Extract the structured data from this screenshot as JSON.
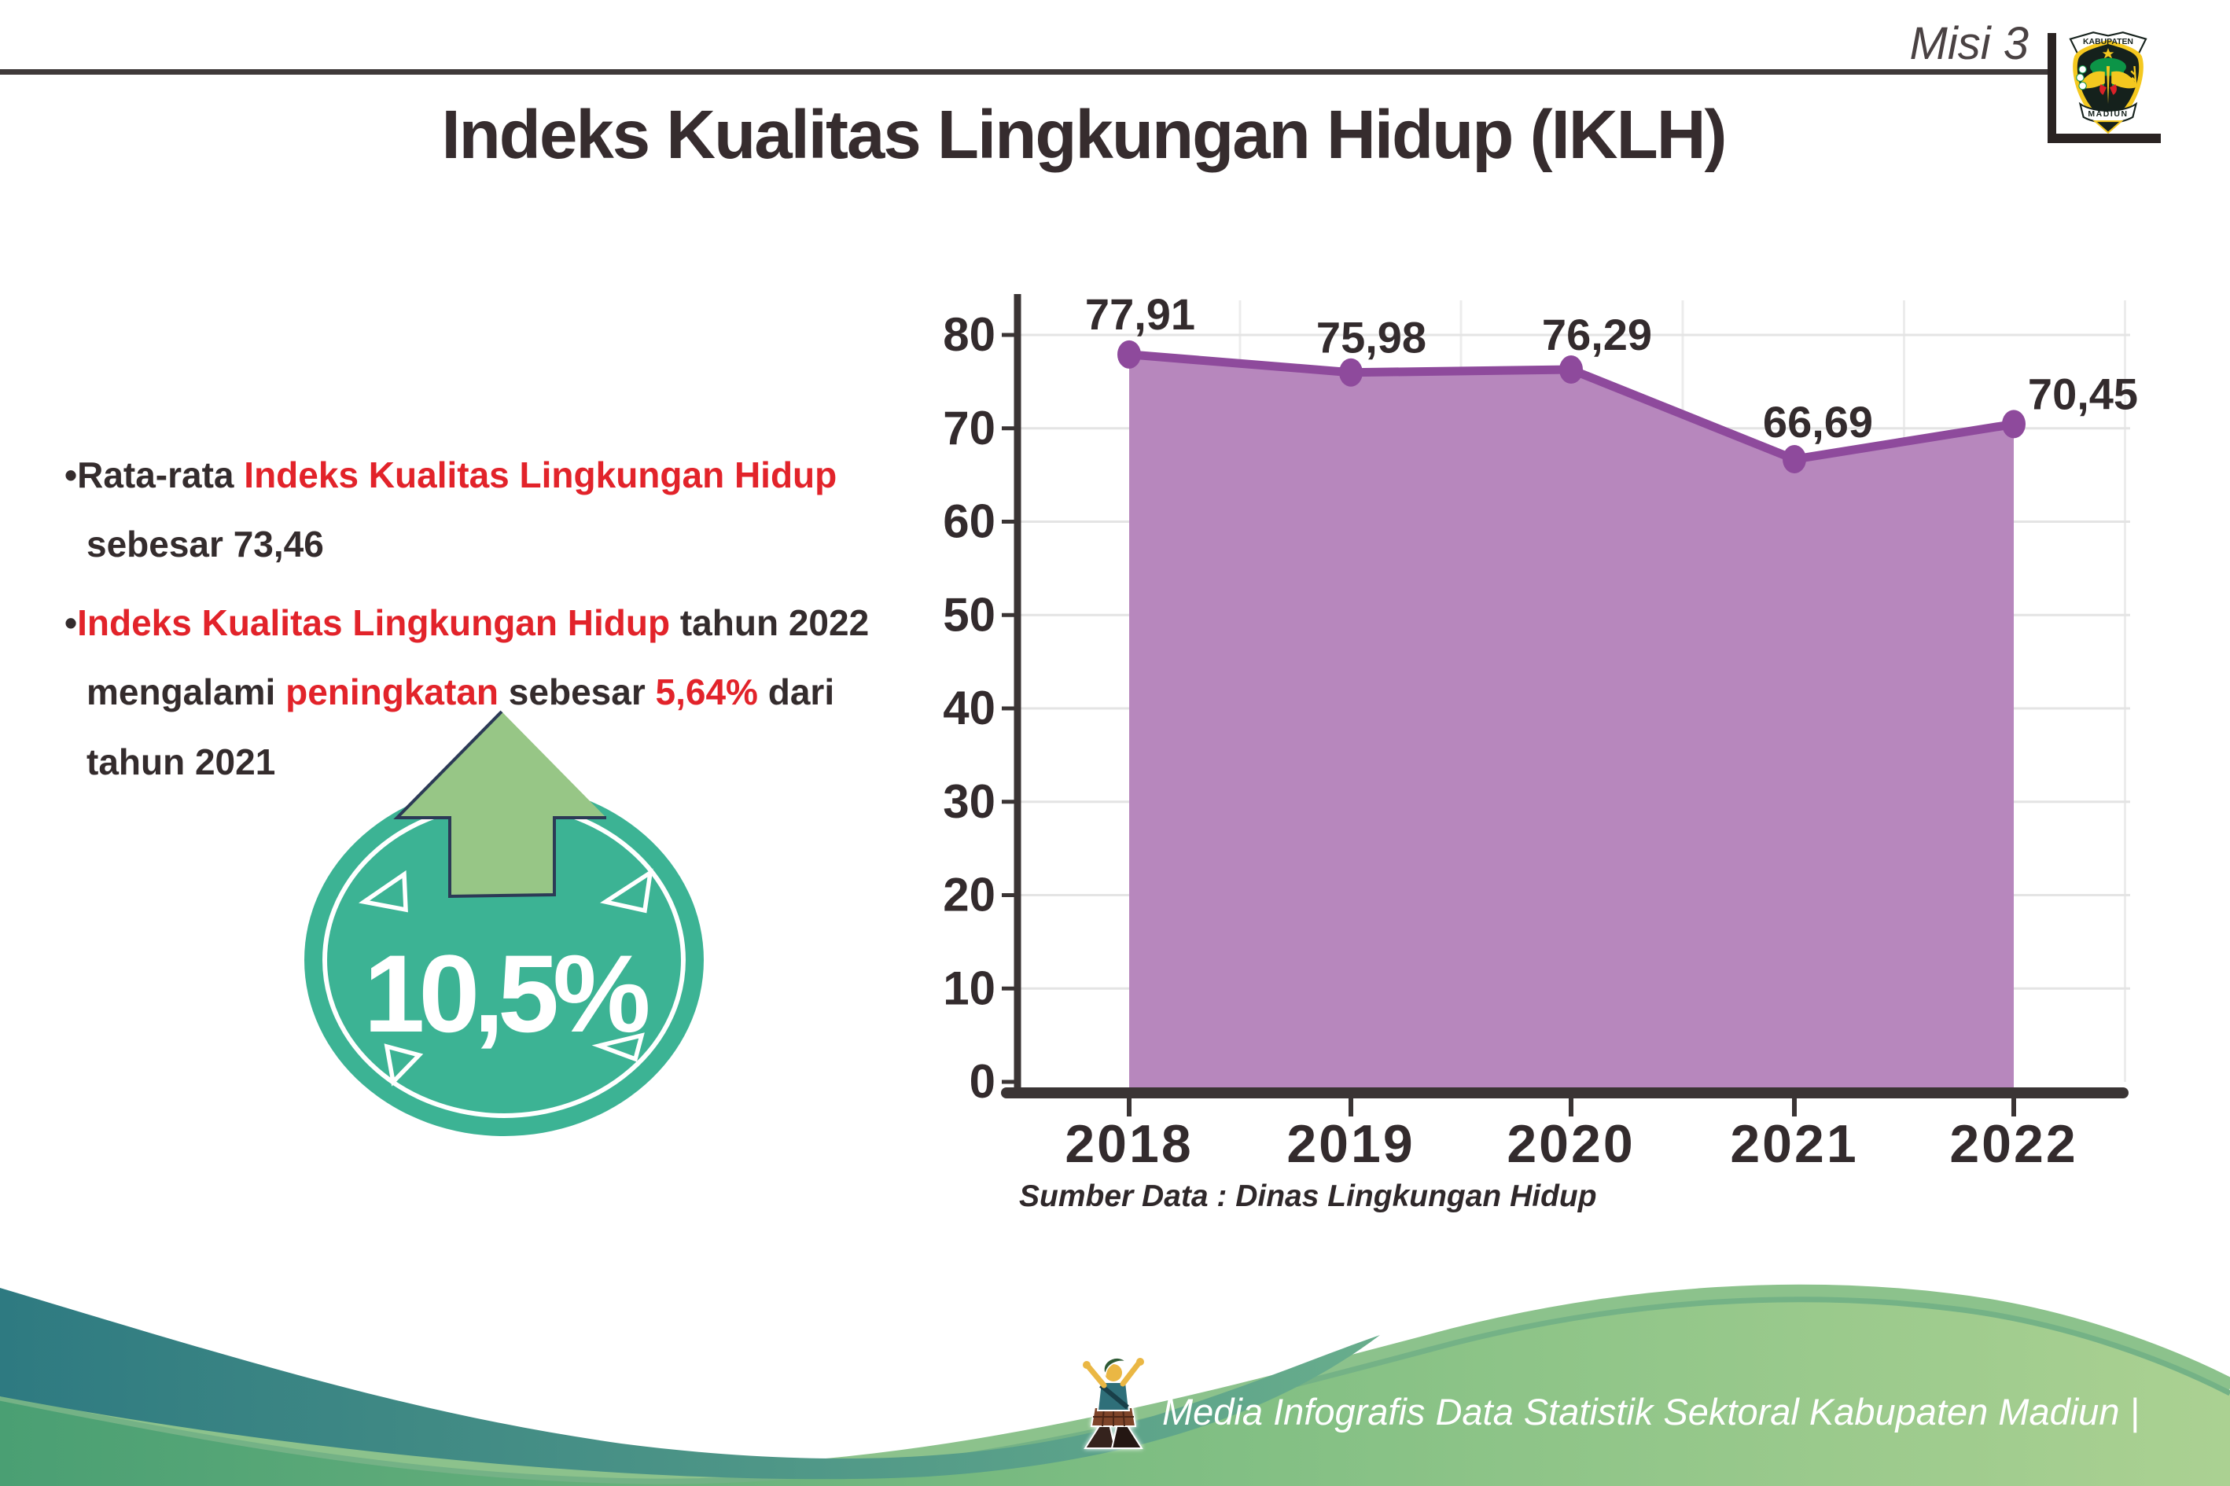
{
  "header": {
    "misi_label": "Misi 3",
    "logo_top_text": "KABUPATEN",
    "logo_bottom_text": "MADIUN"
  },
  "title": "Indeks Kualitas Lingkungan Hidup (IKLH)",
  "bullets": {
    "b1_part1": "•Rata-rata ",
    "b1_red": "Indeks Kualitas Lingkungan Hidup",
    "b1_line2": "sebesar 73,46",
    "b2_part1": "•",
    "b2_red1": "Indeks Kualitas Lingkungan Hidup",
    "b2_part2": " tahun 2022",
    "b2_part3": "mengalami ",
    "b2_red2": "peningkatan",
    "b2_part4": " sebesar ",
    "b2_red3": "5,64%",
    "b2_part5": " dari",
    "b2_line3": "tahun 2021"
  },
  "badge": {
    "value": "10,5%"
  },
  "chart_data": {
    "type": "area",
    "title": "",
    "categories": [
      "2018",
      "2019",
      "2020",
      "2021",
      "2022"
    ],
    "values": [
      77.91,
      75.98,
      76.29,
      66.69,
      70.45
    ],
    "value_labels": [
      "77,91",
      "75,98",
      "76,29",
      "66,69",
      "70,45"
    ],
    "xlabel": "",
    "ylabel": "",
    "ylim": [
      0,
      80
    ],
    "ytick_step": 10,
    "yticks": [
      "0",
      "10",
      "20",
      "30",
      "40",
      "50",
      "60",
      "70",
      "80"
    ],
    "grid": true,
    "legend": "none",
    "source": "Sumber Data : Dinas Lingkungan Hidup",
    "colors": {
      "area": "#b787bd",
      "line": "#8e4a9c",
      "label": "#332b2d",
      "axis": "#3a3434",
      "grid": "#e4e4e4"
    }
  },
  "footer": {
    "credit": "Media Infografis Data Statistik Sektoral Kabupaten Madiun |"
  },
  "colors": {
    "accent_red": "#e2232a",
    "badge_teal": "#3cb394",
    "badge_arrow_green": "#97c686",
    "badge_arrow_outline": "#2c3a56",
    "wave_teal_dark": "#2e7a81",
    "wave_green_light": "#abd192"
  }
}
